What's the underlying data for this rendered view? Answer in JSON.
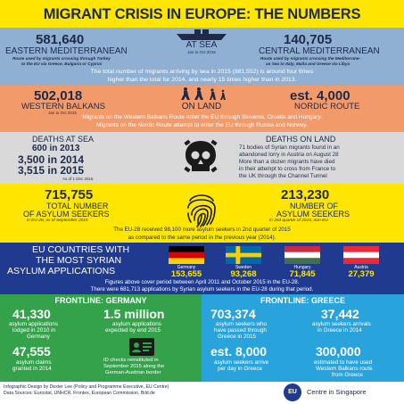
{
  "header": {
    "title": "MIGRANT CRISIS IN EUROPE: THE NUMBERS"
  },
  "sea": {
    "label": "AT SEA",
    "dates": "Jan to Oct 2015",
    "east_value": "581,640",
    "east_name": "EASTERN MEDITERRANEAN",
    "east_desc_1": "Route used by migrants crossing through Turkey",
    "east_desc_2": "to the EU via Greece, Bulgaria or Cyprus",
    "central_value": "140,705",
    "central_name": "CENTRAL MEDITERRANEAN",
    "central_desc_1": "Route used by migrants crossing the Mediterrane-",
    "central_desc_2": "an Sea to Italy, Malta and Greece via Libya",
    "total_line_1": "The total number of migrants arriving by sea in 2015 (881,552) is around four times",
    "total_line_2": "higher than the total for 2014, and nearly 15 times higher than in 2013."
  },
  "land": {
    "label": "ON LAND",
    "balkans_value": "502,018",
    "balkans_name": "WESTERN BALKANS",
    "balkans_dates": "Jan to Oct 2015",
    "nordic_value": "est. 4,000",
    "nordic_name": "NORDIC ROUTE",
    "line_1": "Migrants on the Western Balkans Route enter the EU through Slovenia, Croatia and Hungary.",
    "line_2": "Migrants on the Nordic Route attempt to enter the EU through Russia and Norway."
  },
  "deaths": {
    "sea_label": "DEATHS AT SEA",
    "sea_2013": "600 in 2013",
    "sea_2014": "3,500 in 2014",
    "sea_2015": "3,515 in 2015",
    "as_of": "As of 1 Dec 2015",
    "land_label": "DEATHS ON LAND",
    "land_lines": [
      "71 bodies of Syrian migrants found in an",
      "abandoned lorry in Austria on August 28",
      "More than a dozen migrants have died",
      "in their attempt to cross from France to",
      "the UK through the Channel Tunnel"
    ]
  },
  "asylum": {
    "total_value": "715,755",
    "total_label_1": "TOTAL NUMBER",
    "total_label_2": "OF ASYLUM SEEKERS",
    "total_sub": "in EU-28, as of September 2015",
    "syrian_value": "213,230",
    "syrian_label_1": "NUMBER OF",
    "syrian_label_2": "ASYLUM SEEKERS",
    "syrian_sub": "in 2nd quarter of 2015, non-EU",
    "footer_1": "The EU-28 received 98,100 more asylum seekers in 2nd quarter of 2015",
    "footer_2": "as compared to the same period in the previous year (2014)."
  },
  "syrian": {
    "title_1": "EU COUNTRIES WITH",
    "title_2": "THE MOST SYRIAN",
    "title_3": "ASYLUM APPLICATIONS",
    "countries": [
      {
        "name": "Germany",
        "value": "153,655"
      },
      {
        "name": "Sweden",
        "value": "93,268"
      },
      {
        "name": "Hungary",
        "value": "71,845"
      },
      {
        "name": "Austria",
        "value": "27,379"
      }
    ],
    "note_1": "Figures above cover period between April 2011 and October 2015 in the EU-28.",
    "note_2": "There were 681,713 applications by Syrian asylum seekers in the EU-28 during that period."
  },
  "germany": {
    "title": "FRONTLINE: GERMANY",
    "v1": "41,330",
    "l1": [
      "asylum applications",
      "lodged in 2010 in",
      "Germany"
    ],
    "v2": "1.5 million",
    "l2": [
      "asylum applications",
      "expected by end 2015"
    ],
    "v3": "47,555",
    "l3": [
      "asylum claims",
      "granted in 2014"
    ],
    "l4": [
      "ID checks reinstituted in",
      "September 2015 along the",
      "German-Austrian border"
    ]
  },
  "greece": {
    "title": "FRONTLINE: GREECE",
    "v1": "703,374",
    "l1": [
      "asylum seekers who",
      "have passed through",
      "Greece in 2015"
    ],
    "v2": "37,442",
    "l2": [
      "asylum seekers arrivals",
      "in Greece in 2014"
    ],
    "v3": "est. 8,000",
    "l3": [
      "asylum seekers arrive",
      "per day in Greece"
    ],
    "v4": "300,000",
    "l4": [
      "estimated to have used",
      "Western Balkans route",
      "from Greece"
    ]
  },
  "footer": {
    "credit": "Infographic Design by Dexter Lee (Policy and Programme Executive, EU Centre)",
    "sources": "Data Sources: Eurostat, UNHCR, Frontex, European Commission, Bild.de",
    "org": "Centre in Singapore",
    "logo_text": "EU"
  },
  "colors": {
    "header": "#ffe600",
    "sea": "#8fb0d2",
    "land": "#f39a6b",
    "deaths": "#d9d9d9",
    "asylum": "#ffe600",
    "syrian": "#1f3a8e",
    "germany": "#33a24a",
    "greece": "#29a3dc"
  }
}
